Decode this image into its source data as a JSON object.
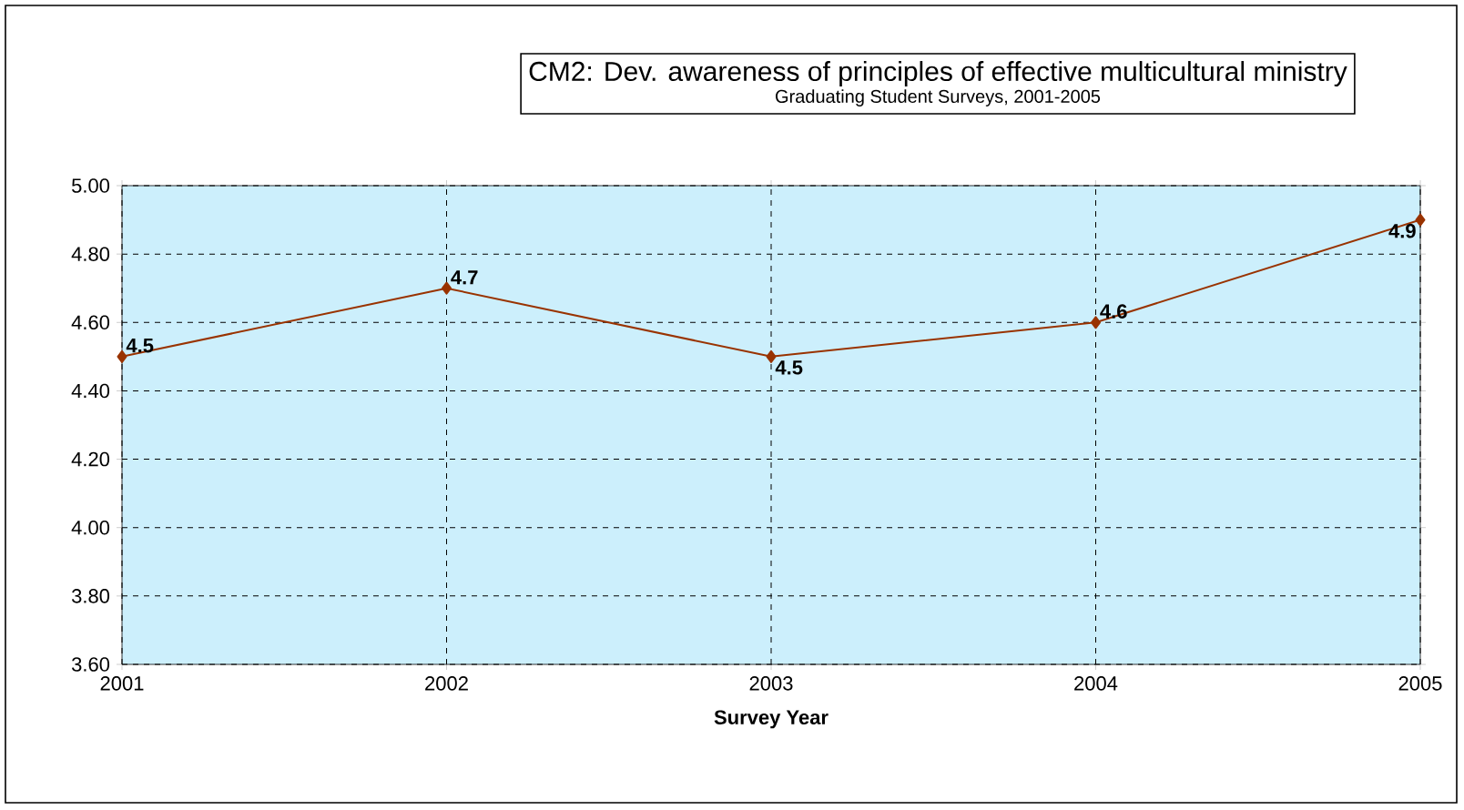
{
  "chart_data": {
    "type": "line",
    "title": "CM2: Dev. awareness of principles of effective multicultural ministry",
    "subtitle": "Graduating Student Surveys, 2001-2005",
    "xlabel": "Survey Year",
    "x": [
      2001,
      2002,
      2003,
      2004,
      2005
    ],
    "values": [
      4.5,
      4.7,
      4.5,
      4.6,
      4.9
    ],
    "color": "#993300",
    "xlim": [
      2001,
      2005
    ],
    "xticks": [
      2001,
      2002,
      2003,
      2004,
      2005
    ],
    "ylim": [
      3.6,
      5.0
    ],
    "yticks": [
      {
        "value": 3.6,
        "label": "3.60"
      },
      {
        "value": 3.8,
        "label": "3.80"
      },
      {
        "value": 4.0,
        "label": "4.00"
      },
      {
        "value": 4.2,
        "label": "4.20"
      },
      {
        "value": 4.4,
        "label": "4.40"
      },
      {
        "value": 4.6,
        "label": "4.60"
      },
      {
        "value": 4.8,
        "label": "4.80"
      },
      {
        "value": 5.0,
        "label": "5.00"
      }
    ],
    "grid": true,
    "marker": "diamond",
    "line_style": "solid",
    "data_labels": true
  }
}
